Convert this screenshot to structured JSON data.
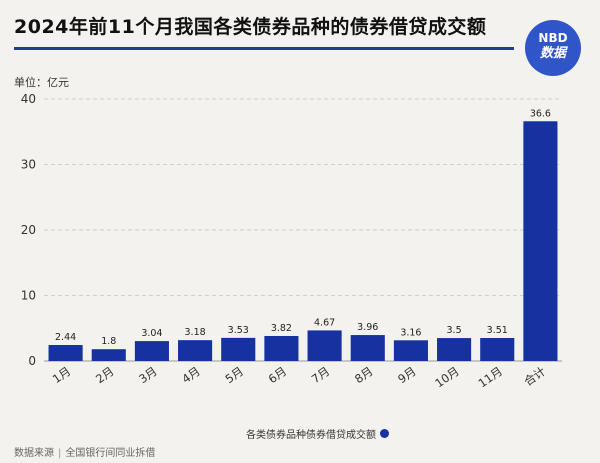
{
  "title": "2024年前11个月我国各类债券品种的债券借贷成交额",
  "logo": {
    "line1": "NBD",
    "line2": "数据"
  },
  "unit_label": "单位：亿元",
  "legend_label": "各类债券品种债券借贷成交额",
  "source_label": "数据来源",
  "source_value": "全国银行间同业拆借",
  "colors": {
    "bar": "#1532a0",
    "title_rule": "#1f3c8f",
    "grid": "#cfcfcf"
  },
  "chart_data": {
    "type": "bar",
    "categories": [
      "1月",
      "2月",
      "3月",
      "4月",
      "5月",
      "6月",
      "7月",
      "8月",
      "9月",
      "10月",
      "11月",
      "合计"
    ],
    "values": [
      2.44,
      1.8,
      3.04,
      3.18,
      3.53,
      3.82,
      4.67,
      3.96,
      3.16,
      3.5,
      3.51,
      36.6
    ],
    "series": [
      {
        "name": "各类债券品种债券借贷成交额",
        "values": [
          2.44,
          1.8,
          3.04,
          3.18,
          3.53,
          3.82,
          4.67,
          3.96,
          3.16,
          3.5,
          3.51,
          36.6
        ]
      }
    ],
    "ylim": [
      0,
      40
    ],
    "yticks": [
      0,
      10,
      20,
      30,
      40
    ],
    "grid": true,
    "legend": "bottom-center"
  }
}
